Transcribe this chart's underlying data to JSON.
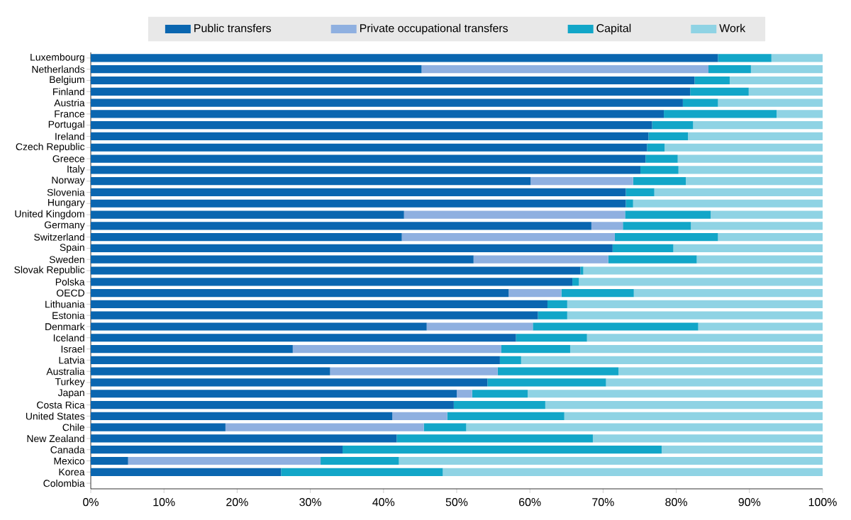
{
  "chart_data": {
    "type": "bar",
    "orientation": "horizontal",
    "stacked": true,
    "legend": "top",
    "grid": false,
    "categories": [
      "Luxembourg",
      "Netherlands",
      "Belgium",
      "Finland",
      "Austria",
      "France",
      "Portugal",
      "Ireland",
      "Czech Republic",
      "Greece",
      "Italy",
      "Norway",
      "Slovenia",
      "Hungary",
      "United Kingdom",
      "Germany",
      "Switzerland",
      "Spain",
      "Sweden",
      "Slovak Republic",
      "Polska",
      "OECD",
      "Lithuania",
      "Estonia",
      "Denmark",
      "Iceland",
      "Israel",
      "Latvia",
      "Australia",
      "Turkey",
      "Japan",
      "Costa Rica",
      "United States",
      "Chile",
      "New Zealand",
      "Canada",
      "Mexico",
      "Korea",
      "Colombia"
    ],
    "series": [
      {
        "name": "Public transfers",
        "color": "#0a66b0",
        "values": [
          85.7,
          45.2,
          82.5,
          81.9,
          80.9,
          78.3,
          76.7,
          76.2,
          76.0,
          75.8,
          75.1,
          60.1,
          73.1,
          73.1,
          42.8,
          68.4,
          42.5,
          71.3,
          52.3,
          66.9,
          65.8,
          57.1,
          62.4,
          61.1,
          45.9,
          58.1,
          27.6,
          55.9,
          32.7,
          54.2,
          50.0,
          49.6,
          41.2,
          18.4,
          41.8,
          34.4,
          5.1,
          26.0,
          null
        ]
      },
      {
        "name": "Private occupational transfers",
        "color": "#8fb0e0",
        "values": [
          0,
          39.2,
          0,
          0,
          0,
          0,
          0,
          0,
          0,
          0,
          0,
          14.0,
          0,
          0,
          30.2,
          4.3,
          29.1,
          0,
          18.4,
          0,
          0,
          7.2,
          0,
          0,
          14.5,
          0,
          28.5,
          0,
          22.9,
          0,
          2.1,
          0,
          7.5,
          27.1,
          0,
          0,
          26.3,
          0,
          null
        ]
      },
      {
        "name": "Capital",
        "color": "#12a6c8",
        "values": [
          7.3,
          5.8,
          4.8,
          8.0,
          4.8,
          15.4,
          5.6,
          5.4,
          2.4,
          4.4,
          5.2,
          7.2,
          3.9,
          1.0,
          11.7,
          9.3,
          14.1,
          8.3,
          12.1,
          0.4,
          0.9,
          9.9,
          2.7,
          4.0,
          22.6,
          9.7,
          9.4,
          2.9,
          16.5,
          16.2,
          7.6,
          12.5,
          16.0,
          5.8,
          26.8,
          43.6,
          10.7,
          22.1,
          null
        ]
      },
      {
        "name": "Work",
        "color": "#8fd3e4",
        "values": [
          7.0,
          9.8,
          12.7,
          10.1,
          14.3,
          6.3,
          17.7,
          18.4,
          21.6,
          19.8,
          19.7,
          18.7,
          23.0,
          25.9,
          15.3,
          18.0,
          14.3,
          20.4,
          17.2,
          32.7,
          33.3,
          25.8,
          34.9,
          34.9,
          17.0,
          32.2,
          34.5,
          41.2,
          27.9,
          29.6,
          40.3,
          37.9,
          35.3,
          48.7,
          31.4,
          22.0,
          57.9,
          51.9,
          null
        ]
      }
    ],
    "xlim": [
      0,
      100
    ],
    "xticks": [
      {
        "value": 0,
        "label": "0%"
      },
      {
        "value": 10,
        "label": "10%"
      },
      {
        "value": 20,
        "label": "20%"
      },
      {
        "value": 30,
        "label": "30%"
      },
      {
        "value": 40,
        "label": "40%"
      },
      {
        "value": 50,
        "label": "50%"
      },
      {
        "value": 60,
        "label": "60%"
      },
      {
        "value": 70,
        "label": "70%"
      },
      {
        "value": 80,
        "label": "80%"
      },
      {
        "value": 90,
        "label": "90%"
      },
      {
        "value": 100,
        "label": "100%"
      }
    ]
  }
}
